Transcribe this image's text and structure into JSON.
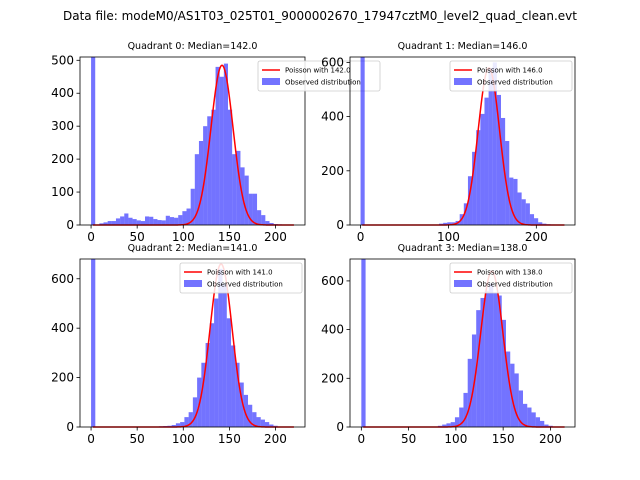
{
  "figure_title": "Data file: modeM0/AS1T03_025T01_9000002670_17947cztM0_level2_quad_clean.evt",
  "colors": {
    "hist": "#0000ff",
    "hist_alpha": 0.55,
    "curve": "#ff0000",
    "axis": "#000000",
    "legend_border": "#cccccc"
  },
  "chart_data": [
    {
      "type": "bar",
      "title": "Quadrant 0: Median=142.0",
      "xlim": [
        -12,
        232
      ],
      "ylim": [
        0,
        510
      ],
      "xticks": [
        0,
        50,
        100,
        150,
        200
      ],
      "yticks": [
        0,
        100,
        200,
        300,
        400,
        500
      ],
      "legend": {
        "position": "top-right",
        "entries": [
          "Poisson with 142.0",
          "Observed distribution"
        ]
      },
      "hist": {
        "bin_start": 0,
        "bin_width": 4.5,
        "counts": [
          510,
          0,
          5,
          8,
          12,
          12,
          20,
          26,
          35,
          22,
          18,
          14,
          12,
          26,
          25,
          18,
          15,
          14,
          28,
          24,
          22,
          30,
          42,
          50,
          110,
          215,
          255,
          300,
          330,
          350,
          480,
          450,
          490,
          350,
          215,
          225,
          175,
          150,
          95,
          95,
          45,
          30,
          12,
          6,
          3,
          2,
          1
        ]
      },
      "curve": {
        "name": "Poisson with 142.0",
        "mean": 142.0,
        "scale": 485,
        "sigma": 12.0,
        "x_range": [
          2,
          220
        ]
      }
    },
    {
      "type": "bar",
      "title": "Quadrant 1: Median=146.0",
      "xlim": [
        -12,
        244
      ],
      "ylim": [
        0,
        620
      ],
      "xticks": [
        0,
        100,
        200
      ],
      "yticks": [
        0,
        200,
        400,
        600
      ],
      "legend": {
        "position": "top-right",
        "entries": [
          "Poisson with 146.0",
          "Observed distribution"
        ]
      },
      "hist": {
        "bin_start": 0,
        "bin_width": 4.7,
        "counts": [
          620,
          0,
          0,
          0,
          0,
          0,
          0,
          0,
          0,
          0,
          0,
          0,
          0,
          0,
          0,
          0,
          0,
          0,
          0,
          5,
          8,
          10,
          10,
          15,
          40,
          80,
          180,
          270,
          350,
          410,
          470,
          580,
          600,
          480,
          395,
          310,
          175,
          170,
          120,
          95,
          80,
          40,
          25,
          10,
          5,
          3,
          2
        ]
      },
      "curve": {
        "name": "Poisson with 146.0",
        "mean": 146.0,
        "scale": 580,
        "sigma": 12.1,
        "x_range": [
          2,
          232
        ]
      }
    },
    {
      "type": "bar",
      "title": "Quadrant 2: Median=141.0",
      "xlim": [
        -12,
        232
      ],
      "ylim": [
        0,
        680
      ],
      "xticks": [
        0,
        50,
        100,
        150,
        200
      ],
      "yticks": [
        0,
        200,
        400,
        600
      ],
      "legend": {
        "position": "top-right",
        "entries": [
          "Poisson with 141.0",
          "Observed distribution"
        ]
      },
      "hist": {
        "bin_start": 0,
        "bin_width": 4.6,
        "counts": [
          680,
          0,
          0,
          0,
          0,
          0,
          0,
          0,
          0,
          0,
          0,
          0,
          0,
          0,
          0,
          2,
          3,
          4,
          5,
          8,
          15,
          20,
          40,
          60,
          120,
          200,
          260,
          340,
          420,
          520,
          640,
          580,
          440,
          330,
          260,
          180,
          130,
          90,
          60,
          40,
          30,
          20,
          10,
          5
        ]
      },
      "curve": {
        "name": "Poisson with 141.0",
        "mean": 141.0,
        "scale": 660,
        "sigma": 11.9,
        "x_range": [
          2,
          220
        ]
      }
    },
    {
      "type": "bar",
      "title": "Quadrant 3: Median=138.0",
      "xlim": [
        -12,
        226
      ],
      "ylim": [
        0,
        690
      ],
      "xticks": [
        0,
        50,
        100,
        150,
        200
      ],
      "yticks": [
        0,
        200,
        400,
        600
      ],
      "legend": {
        "position": "top-right",
        "entries": [
          "Poisson with 138.0",
          "Observed distribution"
        ]
      },
      "hist": {
        "bin_start": 0,
        "bin_width": 4.5,
        "counts": [
          690,
          0,
          0,
          0,
          0,
          0,
          0,
          0,
          0,
          0,
          0,
          0,
          0,
          0,
          0,
          0,
          0,
          0,
          5,
          10,
          15,
          20,
          40,
          80,
          140,
          280,
          380,
          480,
          530,
          560,
          590,
          550,
          540,
          440,
          310,
          260,
          220,
          150,
          95,
          80,
          60,
          40,
          25,
          10,
          5,
          2
        ]
      },
      "curve": {
        "name": "Poisson with 138.0",
        "mean": 138.0,
        "scale": 640,
        "sigma": 11.7,
        "x_range": [
          2,
          215
        ]
      }
    }
  ]
}
